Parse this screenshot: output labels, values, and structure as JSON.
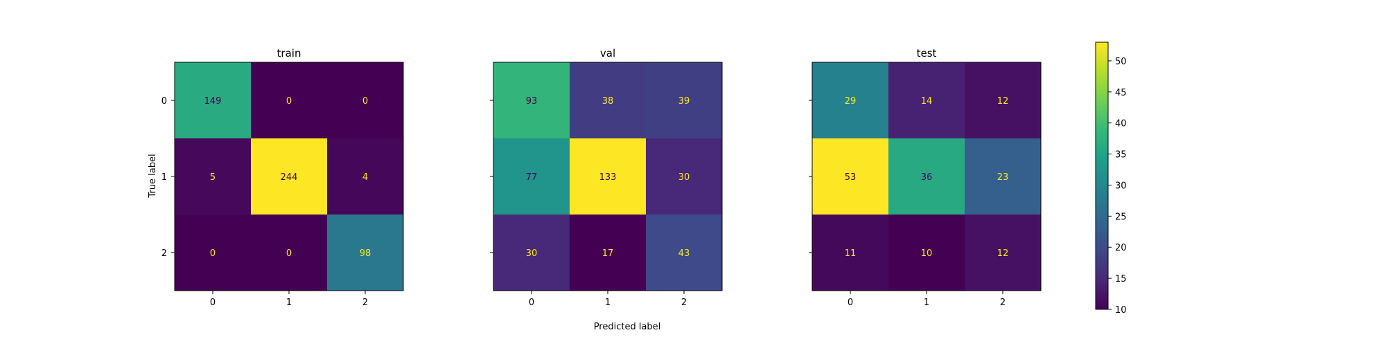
{
  "chart_data": [
    {
      "type": "heatmap",
      "title": "train",
      "xlabel": "",
      "ylabel": "True label",
      "x_ticks": [
        "0",
        "1",
        "2"
      ],
      "y_ticks": [
        "0",
        "1",
        "2"
      ],
      "matrix": [
        [
          149,
          0,
          0
        ],
        [
          5,
          244,
          4
        ],
        [
          0,
          0,
          98
        ]
      ],
      "color_range": [
        0,
        244
      ]
    },
    {
      "type": "heatmap",
      "title": "val",
      "xlabel": "Predicted label",
      "ylabel": "",
      "x_ticks": [
        "0",
        "1",
        "2"
      ],
      "y_ticks": [],
      "matrix": [
        [
          93,
          38,
          39
        ],
        [
          77,
          133,
          30
        ],
        [
          30,
          17,
          43
        ]
      ],
      "color_range": [
        17,
        133
      ]
    },
    {
      "type": "heatmap",
      "title": "test",
      "xlabel": "",
      "ylabel": "",
      "x_ticks": [
        "0",
        "1",
        "2"
      ],
      "y_ticks": [],
      "matrix": [
        [
          29,
          14,
          12
        ],
        [
          53,
          36,
          23
        ],
        [
          11,
          10,
          12
        ]
      ],
      "color_range": [
        10,
        53
      ]
    }
  ],
  "colorbar": {
    "ticks": [
      "10",
      "15",
      "20",
      "25",
      "30",
      "35",
      "40",
      "45",
      "50"
    ],
    "range": [
      10,
      53
    ],
    "colormap": "viridis"
  },
  "colors": {
    "low_text": "#fde725",
    "high_text": "#440154"
  }
}
